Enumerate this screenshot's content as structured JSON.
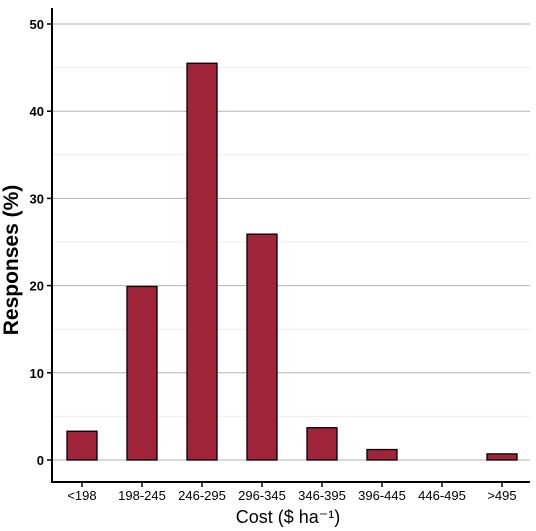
{
  "chart_data": {
    "type": "bar",
    "categories": [
      "<198",
      "198-245",
      "246-295",
      "296-345",
      "346-395",
      "396-445",
      "446-495",
      ">495"
    ],
    "values": [
      3.3,
      19.9,
      45.5,
      25.9,
      3.7,
      1.2,
      0,
      0.7
    ],
    "title": "",
    "xlabel": "Cost ($ ha⁻¹)",
    "ylabel": "Responses (%)",
    "ylim": [
      0,
      52
    ],
    "yticks": [
      0,
      10,
      20,
      30,
      40,
      50
    ],
    "grid": true,
    "bar_color": "#a0243a",
    "bar_edge_color": "#000000"
  }
}
